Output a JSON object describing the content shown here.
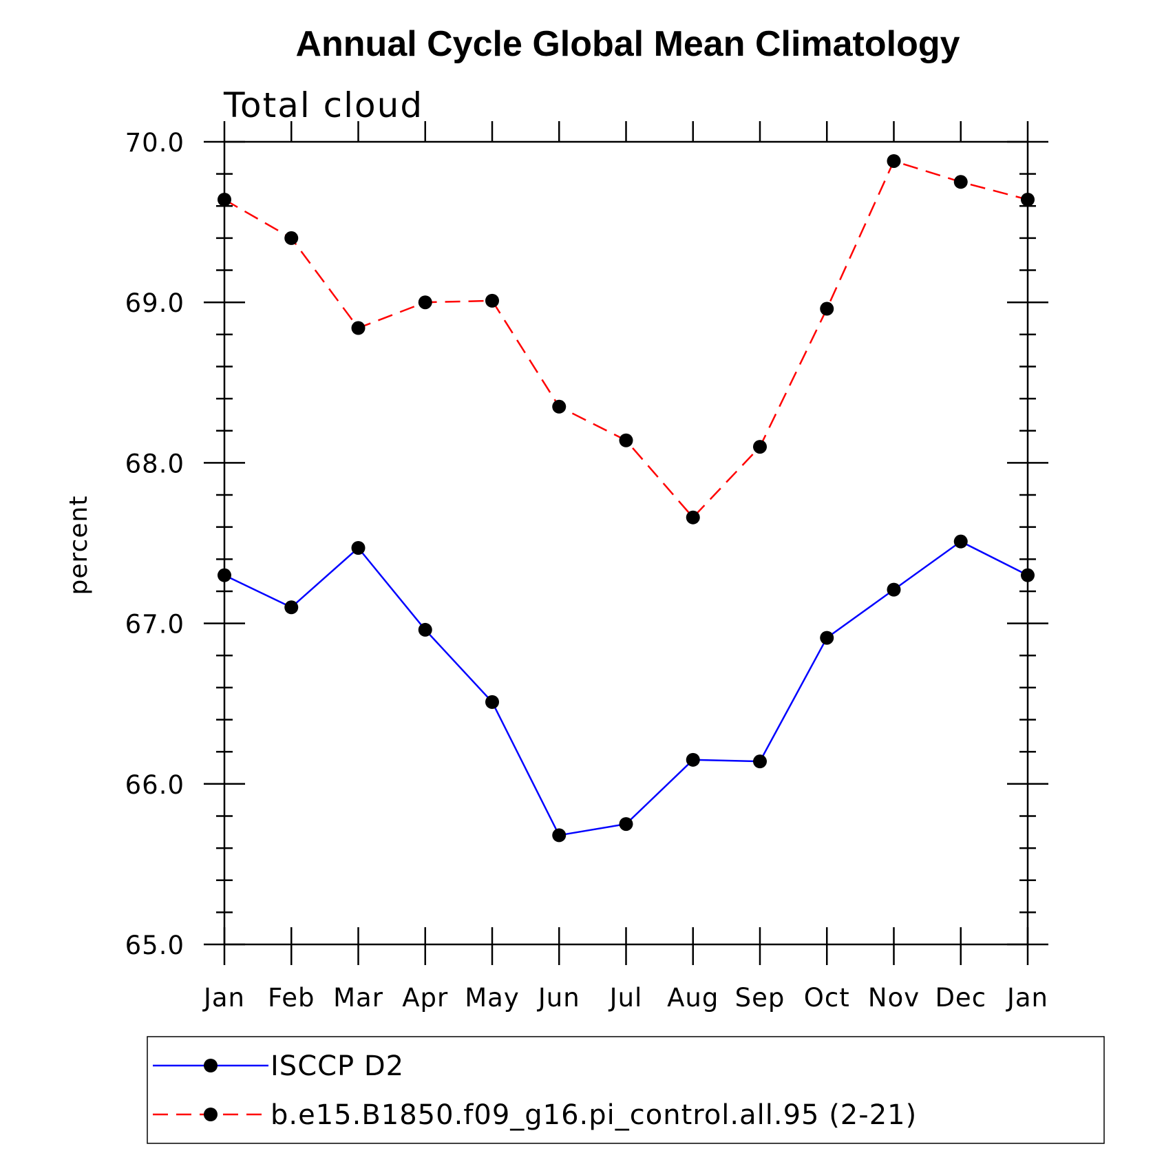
{
  "chart_data": {
    "type": "line",
    "title": "Annual Cycle Global Mean Climatology",
    "subtitle": "Total cloud",
    "xlabel": "",
    "ylabel": "percent",
    "categories": [
      "Jan",
      "Feb",
      "Mar",
      "Apr",
      "May",
      "Jun",
      "Jul",
      "Aug",
      "Sep",
      "Oct",
      "Nov",
      "Dec",
      "Jan"
    ],
    "ylim": [
      65.0,
      70.0
    ],
    "yticks": [
      "65.0",
      "66.0",
      "67.0",
      "68.0",
      "69.0",
      "70.0"
    ],
    "grid": false,
    "legend_position": "bottom",
    "series": [
      {
        "name": "ISCCP D2",
        "color": "#0000ff",
        "dash": "solid",
        "values": [
          67.3,
          67.1,
          67.47,
          66.96,
          66.51,
          65.68,
          65.75,
          66.15,
          66.14,
          66.91,
          67.21,
          67.51,
          67.3
        ]
      },
      {
        "name": "b.e15.B1850.f09_g16.pi_control.all.95 (2-21)",
        "color": "#ff0000",
        "dash": "dashed",
        "values": [
          69.64,
          69.4,
          68.84,
          69.0,
          69.01,
          68.35,
          68.14,
          67.66,
          68.1,
          68.96,
          69.88,
          69.75,
          69.64
        ]
      }
    ]
  }
}
